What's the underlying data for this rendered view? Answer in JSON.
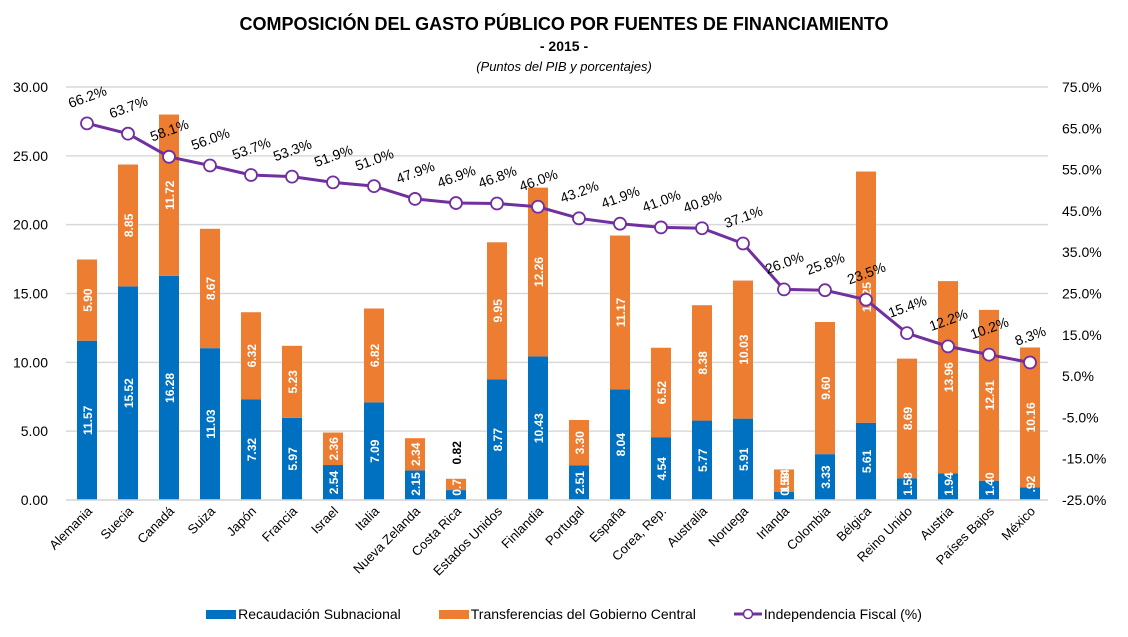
{
  "chart_data": {
    "type": "bar",
    "stacked": true,
    "title": "COMPOSICIÓN DEL GASTO PÚBLICO POR FUENTES DE FINANCIAMIENTO",
    "subtitle": "- 2015 -",
    "units_note": "(Puntos del PIB y porcentajes)",
    "xlabel": "",
    "ylabel": "",
    "ylim": [
      0,
      30
    ],
    "yticks": [
      "0.00",
      "5.00",
      "10.00",
      "15.00",
      "20.00",
      "25.00",
      "30.00"
    ],
    "y2lim": [
      -25,
      75
    ],
    "y2ticks": [
      "-25.0%",
      "-15.0%",
      "-5.0%",
      "5.0%",
      "15.0%",
      "25.0%",
      "35.0%",
      "45.0%",
      "55.0%",
      "65.0%",
      "75.0%"
    ],
    "grid": true,
    "legend_position": "bottom",
    "categories": [
      "Alemania",
      "Suecia",
      "Canadá",
      "Suiza",
      "Japón",
      "Francia",
      "Israel",
      "Italia",
      "Nueva Zelanda",
      "Costa Rica",
      "Estados Unidos",
      "Finlandia",
      "Portugal",
      "España",
      "Corea, Rep.",
      "Australia",
      "Noruega",
      "Irlanda",
      "Colombia",
      "Bélgica",
      "Reino Unido",
      "Austria",
      "Países Bajos",
      "México"
    ],
    "series": [
      {
        "name": "Recaudación Subnacional",
        "type": "bar",
        "axis": "left",
        "color": "#0070c0",
        "values": [
          11.57,
          15.52,
          16.28,
          11.03,
          7.32,
          5.97,
          2.54,
          7.09,
          2.15,
          0.72,
          8.77,
          10.43,
          2.51,
          8.04,
          4.54,
          5.77,
          5.91,
          0.58,
          3.33,
          5.61,
          1.58,
          1.94,
          1.4,
          0.92
        ],
        "labels": [
          "11.57",
          "15.52",
          "16.28",
          "11.03",
          "7.32",
          "5.97",
          "2.54",
          "7.09",
          "2.15",
          "0.72",
          "8.77",
          "10.43",
          "2.51",
          "8.04",
          "4.54",
          "5.77",
          "5.91",
          "0.58",
          "3.33",
          "5.61",
          "1.58",
          "1.94",
          "1.40",
          ".92"
        ]
      },
      {
        "name": "Transferencias del Gobierno Central",
        "type": "bar",
        "axis": "left",
        "color": "#ed7d31",
        "values": [
          5.9,
          8.85,
          11.72,
          8.67,
          6.32,
          5.23,
          2.36,
          6.82,
          2.34,
          0.82,
          9.95,
          12.26,
          3.3,
          11.17,
          6.52,
          8.38,
          10.03,
          1.64,
          9.6,
          18.25,
          8.69,
          13.96,
          12.41,
          10.16
        ],
        "labels": [
          "5.90",
          "8.85",
          "11.72",
          "8.67",
          "6.32",
          "5.23",
          "2.36",
          "6.82",
          "2.34",
          "0.82",
          "9.95",
          "12.26",
          "3.30",
          "11.17",
          "6.52",
          "8.38",
          "10.03",
          "1.64",
          "9.60",
          "18.25",
          "8.69",
          "13.96",
          "12.41",
          "10.16"
        ]
      },
      {
        "name": "Independencia Fiscal (%)",
        "type": "line",
        "axis": "right",
        "color": "#7030a0",
        "values": [
          66.2,
          63.7,
          58.1,
          56.0,
          53.7,
          53.3,
          51.9,
          51.0,
          47.9,
          46.9,
          46.8,
          46.0,
          43.2,
          41.9,
          41.0,
          40.8,
          37.1,
          26.0,
          25.8,
          23.5,
          15.4,
          12.2,
          10.2,
          8.3
        ],
        "labels": [
          "66.2%",
          "63.7%",
          "58.1%",
          "56.0%",
          "53.7%",
          "53.3%",
          "51.9%",
          "51.0%",
          "47.9%",
          "46.9%",
          "46.8%",
          "46.0%",
          "43.2%",
          "41.9%",
          "41.0%",
          "40.8%",
          "37.1%",
          "26.0%",
          "25.8%",
          "23.5%",
          "15.4%",
          "12.2%",
          "10.2%",
          "8.3%"
        ]
      }
    ]
  }
}
